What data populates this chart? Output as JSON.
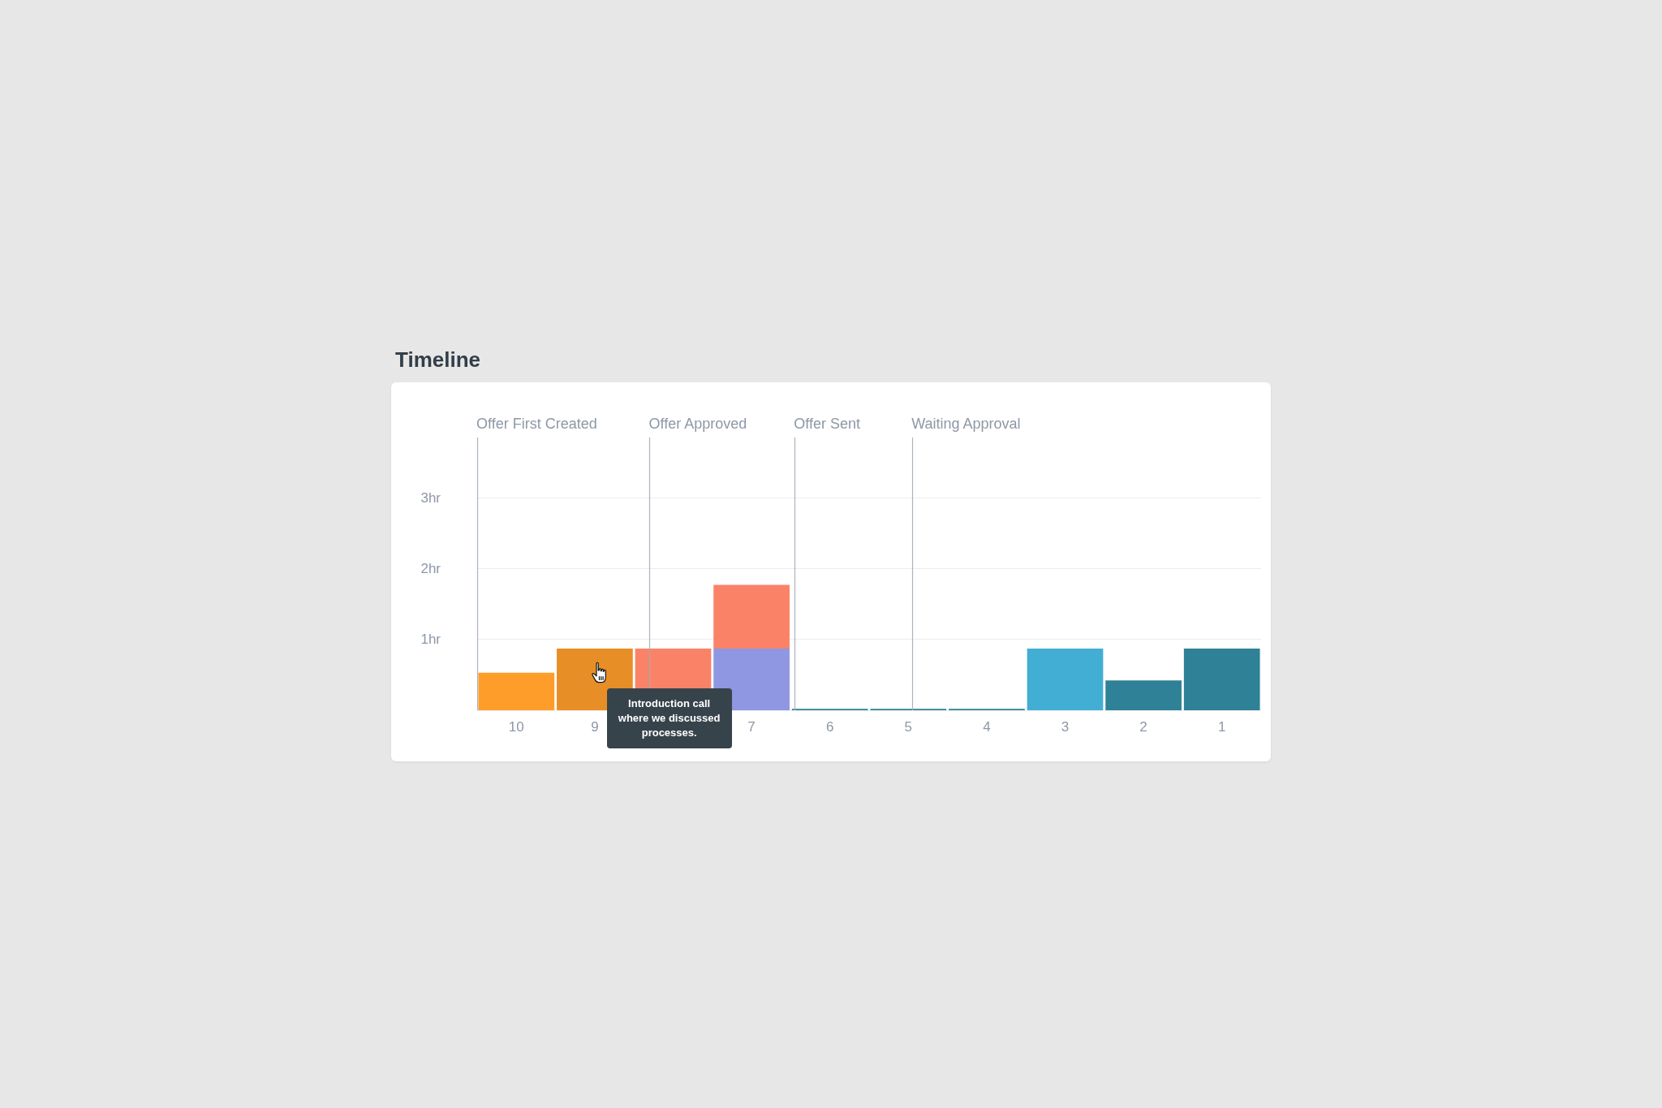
{
  "chart_data": {
    "type": "bar",
    "title": "Timeline",
    "x": [
      10,
      9,
      8,
      7,
      6,
      5,
      4,
      3,
      2,
      1
    ],
    "xlim": [
      10.5,
      0.5
    ],
    "xticks": [
      10,
      9,
      7,
      6,
      5,
      4,
      3,
      2,
      1
    ],
    "ylim": [
      0,
      3.85
    ],
    "yticks": [
      {
        "value": 0,
        "label": null
      },
      {
        "value": 1,
        "label": "1hr"
      },
      {
        "value": 2,
        "label": "2hr"
      },
      {
        "value": 3,
        "label": "3hr"
      }
    ],
    "grid": "y",
    "stacked": true,
    "series": [
      {
        "values": [
          0.53,
          0.87,
          0.87,
          0.87,
          0.02,
          0.02,
          0.02,
          0.87,
          0.42,
          0.87
        ],
        "colors": [
          "#ff9d2a",
          "#e88e27",
          "#fa8367",
          "#8f96e2",
          "#2e8196",
          "#2e8196",
          "#2e8196",
          "#42aed3",
          "#2e8196",
          "#2e8196"
        ]
      },
      {
        "values": [
          null,
          null,
          null,
          0.9,
          null,
          null,
          null,
          null,
          null,
          null
        ],
        "color": "#fa8367"
      }
    ],
    "ref_lines": [
      {
        "axis": "x",
        "value": 10.5,
        "label": "Offer First Created"
      },
      {
        "axis": "x",
        "value": 8.3,
        "label": "Offer Approved"
      },
      {
        "axis": "x",
        "value": 6.45,
        "label": "Offer Sent"
      },
      {
        "axis": "x",
        "value": 4.95,
        "label": "Waiting Approval"
      }
    ],
    "annotations": [
      "Introduction call where we discussed processes."
    ]
  }
}
